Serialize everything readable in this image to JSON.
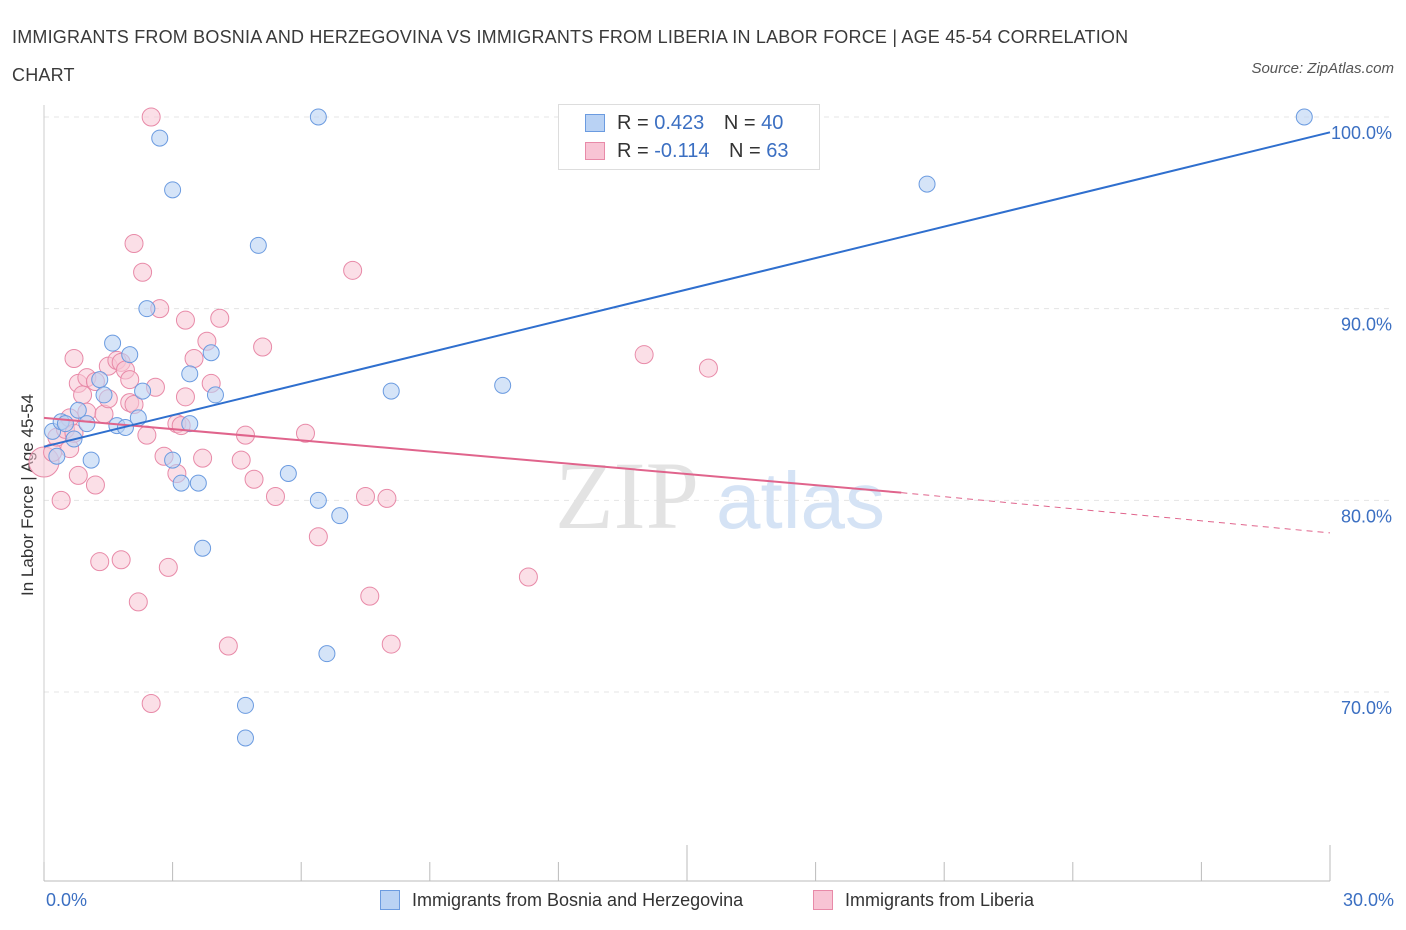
{
  "title": "IMMIGRANTS FROM BOSNIA AND HERZEGOVINA VS IMMIGRANTS FROM LIBERIA IN LABOR FORCE | AGE 45-54 CORRELATION CHART",
  "source": "Source: ZipAtlas.com",
  "watermark": {
    "zip": "ZIP",
    "atlas": "atlas"
  },
  "colors": {
    "blue_fill": "#b9d2f4",
    "blue_stroke": "#6b9be0",
    "blue_line": "#2f6fce",
    "pink_fill": "#f8c4d4",
    "pink_stroke": "#e88aa8",
    "pink_line": "#e0648c",
    "axis_text": "#3b6fc2"
  },
  "legend": {
    "r_label": "R =",
    "n_label": "N =",
    "bosnia": {
      "r": "0.423",
      "n": "40"
    },
    "liberia": {
      "r": "-0.114",
      "n": "63"
    }
  },
  "chart_data": {
    "type": "scatter",
    "title": "IMMIGRANTS FROM BOSNIA AND HERZEGOVINA VS IMMIGRANTS FROM LIBERIA IN LABOR FORCE | AGE 45-54 CORRELATION CHART",
    "xlabel": "",
    "ylabel": "In Labor Force | Age 45-54",
    "xlim": [
      0,
      30
    ],
    "ylim": [
      60,
      100
    ],
    "x_tick_labels": [
      "0.0%",
      "30.0%"
    ],
    "y_ticks": [
      70,
      80,
      90,
      100
    ],
    "y_tick_labels": [
      "70.0%",
      "80.0%",
      "90.0%",
      "100.0%"
    ],
    "grid": true,
    "legend_position": "top-center",
    "series": [
      {
        "name": "Immigrants from Bosnia and Herzegovina",
        "color": "#6b9be0",
        "trend": {
          "x": [
            0,
            30
          ],
          "y": [
            82.8,
            99.2
          ]
        },
        "points": [
          [
            0.2,
            83.6
          ],
          [
            0.3,
            82.3
          ],
          [
            0.4,
            84.1
          ],
          [
            0.5,
            84.0
          ],
          [
            0.7,
            83.2
          ],
          [
            0.8,
            84.7
          ],
          [
            1.0,
            84.0
          ],
          [
            1.1,
            82.1
          ],
          [
            1.3,
            86.3
          ],
          [
            1.4,
            85.5
          ],
          [
            1.6,
            88.2
          ],
          [
            1.7,
            83.9
          ],
          [
            1.9,
            83.8
          ],
          [
            2.0,
            87.6
          ],
          [
            2.2,
            84.3
          ],
          [
            2.3,
            85.7
          ],
          [
            2.4,
            90.0
          ],
          [
            2.7,
            98.9
          ],
          [
            3.0,
            96.2
          ],
          [
            3.0,
            82.1
          ],
          [
            3.2,
            80.9
          ],
          [
            3.4,
            84.0
          ],
          [
            3.4,
            86.6
          ],
          [
            3.6,
            80.9
          ],
          [
            3.7,
            77.5
          ],
          [
            3.9,
            87.7
          ],
          [
            4.0,
            85.5
          ],
          [
            4.7,
            69.3
          ],
          [
            4.7,
            67.6
          ],
          [
            5.0,
            93.3
          ],
          [
            5.7,
            81.4
          ],
          [
            6.4,
            80.0
          ],
          [
            6.4,
            100.0
          ],
          [
            6.6,
            72.0
          ],
          [
            6.9,
            79.2
          ],
          [
            8.1,
            85.7
          ],
          [
            10.7,
            86.0
          ],
          [
            15.5,
            100.0
          ],
          [
            20.6,
            96.5
          ],
          [
            29.4,
            100.0
          ]
        ]
      },
      {
        "name": "Immigrants from Liberia",
        "color": "#e88aa8",
        "trend": {
          "x": [
            0,
            20
          ],
          "y": [
            84.3,
            80.4
          ]
        },
        "trend_dashed": {
          "x": [
            20,
            30
          ],
          "y": [
            80.4,
            78.3
          ]
        },
        "points": [
          [
            0.0,
            82.0
          ],
          [
            0.2,
            82.5
          ],
          [
            0.3,
            83.3
          ],
          [
            0.4,
            80.0
          ],
          [
            0.5,
            83.7
          ],
          [
            0.6,
            84.3
          ],
          [
            0.6,
            82.7
          ],
          [
            0.7,
            83.5
          ],
          [
            0.7,
            87.4
          ],
          [
            0.8,
            86.1
          ],
          [
            0.8,
            81.3
          ],
          [
            0.9,
            85.5
          ],
          [
            1.0,
            84.6
          ],
          [
            1.0,
            86.4
          ],
          [
            1.2,
            86.2
          ],
          [
            1.2,
            80.8
          ],
          [
            1.3,
            76.8
          ],
          [
            1.4,
            84.5
          ],
          [
            1.5,
            85.3
          ],
          [
            1.5,
            87.0
          ],
          [
            1.7,
            87.3
          ],
          [
            1.8,
            76.9
          ],
          [
            1.8,
            87.2
          ],
          [
            1.9,
            86.8
          ],
          [
            2.0,
            86.3
          ],
          [
            2.0,
            85.1
          ],
          [
            2.1,
            93.4
          ],
          [
            2.1,
            85.0
          ],
          [
            2.2,
            74.7
          ],
          [
            2.3,
            91.9
          ],
          [
            2.4,
            83.4
          ],
          [
            2.5,
            69.4
          ],
          [
            2.5,
            100.0
          ],
          [
            2.6,
            85.9
          ],
          [
            2.7,
            90.0
          ],
          [
            2.8,
            82.3
          ],
          [
            2.9,
            76.5
          ],
          [
            3.1,
            84.0
          ],
          [
            3.1,
            81.4
          ],
          [
            3.2,
            83.9
          ],
          [
            3.3,
            85.4
          ],
          [
            3.3,
            89.4
          ],
          [
            3.5,
            87.4
          ],
          [
            3.7,
            82.2
          ],
          [
            3.8,
            88.3
          ],
          [
            3.9,
            86.1
          ],
          [
            4.1,
            89.5
          ],
          [
            4.3,
            72.4
          ],
          [
            4.6,
            82.1
          ],
          [
            4.7,
            83.4
          ],
          [
            4.9,
            81.1
          ],
          [
            5.1,
            88.0
          ],
          [
            5.4,
            80.2
          ],
          [
            6.1,
            83.5
          ],
          [
            6.4,
            78.1
          ],
          [
            7.2,
            92.0
          ],
          [
            7.5,
            80.2
          ],
          [
            7.6,
            75.0
          ],
          [
            8.0,
            80.1
          ],
          [
            8.1,
            72.5
          ],
          [
            14.0,
            87.6
          ],
          [
            15.5,
            86.9
          ],
          [
            11.3,
            76.0
          ]
        ]
      }
    ]
  }
}
